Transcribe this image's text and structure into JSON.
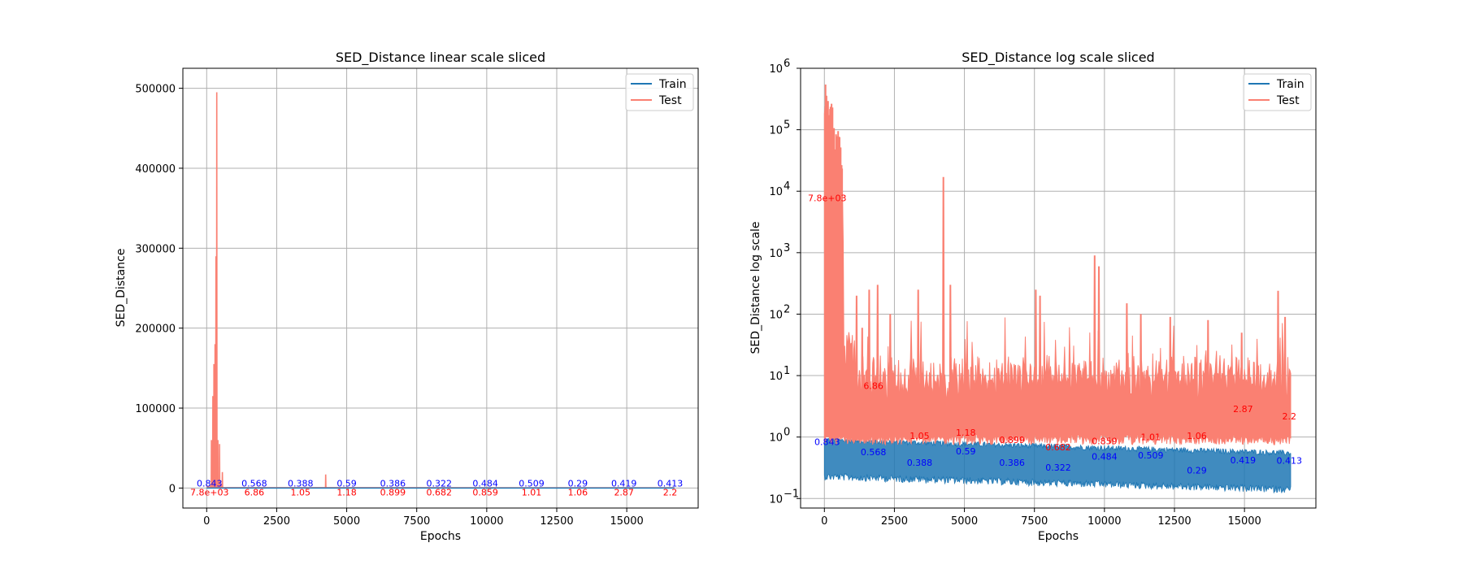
{
  "chart_data": [
    {
      "type": "line",
      "title": "SED_Distance linear scale sliced",
      "xlabel": "Epochs",
      "ylabel": "SED_Distance",
      "xlim": [
        -850,
        17550
      ],
      "ylim": [
        -25000,
        525000
      ],
      "xticks": [
        0,
        2500,
        5000,
        7500,
        10000,
        12500,
        15000
      ],
      "yticks": [
        0,
        100000,
        200000,
        300000,
        400000,
        500000
      ],
      "grid": true,
      "legend": "top-right",
      "series": [
        {
          "name": "Train",
          "color": "#1f77b4"
        },
        {
          "name": "Test",
          "color": "#fa8072"
        }
      ],
      "test_peaks": [
        [
          140,
          4000
        ],
        [
          170,
          60000
        ],
        [
          190,
          3000
        ],
        [
          220,
          115000
        ],
        [
          240,
          5000
        ],
        [
          260,
          155000
        ],
        [
          280,
          20000
        ],
        [
          300,
          180000
        ],
        [
          315,
          30000
        ],
        [
          330,
          290000
        ],
        [
          345,
          20000
        ],
        [
          360,
          495000
        ],
        [
          375,
          10000
        ],
        [
          400,
          60000
        ],
        [
          420,
          8000
        ],
        [
          460,
          55000
        ],
        [
          500,
          5000
        ],
        [
          560,
          20000
        ],
        [
          4250,
          17000
        ]
      ],
      "annotations_train": [
        {
          "x": 100,
          "text": "0.843"
        },
        {
          "x": 1700,
          "text": "0.568"
        },
        {
          "x": 3350,
          "text": "0.388"
        },
        {
          "x": 5000,
          "text": "0.59"
        },
        {
          "x": 6650,
          "text": "0.386"
        },
        {
          "x": 8300,
          "text": "0.322"
        },
        {
          "x": 9950,
          "text": "0.484"
        },
        {
          "x": 11600,
          "text": "0.509"
        },
        {
          "x": 13250,
          "text": "0.29"
        },
        {
          "x": 14900,
          "text": "0.419"
        },
        {
          "x": 16550,
          "text": "0.413"
        }
      ],
      "annotations_test": [
        {
          "x": 100,
          "text": "7.8e+03"
        },
        {
          "x": 1700,
          "text": "6.86"
        },
        {
          "x": 3350,
          "text": "1.05"
        },
        {
          "x": 5000,
          "text": "1.18"
        },
        {
          "x": 6650,
          "text": "0.899"
        },
        {
          "x": 8300,
          "text": "0.682"
        },
        {
          "x": 9950,
          "text": "0.859"
        },
        {
          "x": 11600,
          "text": "1.01"
        },
        {
          "x": 13250,
          "text": "1.06"
        },
        {
          "x": 14900,
          "text": "2.87"
        },
        {
          "x": 16550,
          "text": "2.2"
        }
      ],
      "annotation_colors": {
        "train": "#0000ff",
        "test": "#ff0000"
      }
    },
    {
      "type": "line",
      "title": "SED_Distance log scale sliced",
      "xlabel": "Epochs",
      "ylabel": "SED_Distance log scale",
      "log_y": true,
      "xlim": [
        -850,
        17550
      ],
      "ylim": [
        0.07,
        1000000
      ],
      "xticks": [
        0,
        2500,
        5000,
        7500,
        10000,
        12500,
        15000
      ],
      "yticks": [
        {
          "value": 0.1,
          "base": "10",
          "exp": "−1"
        },
        {
          "value": 1,
          "base": "10",
          "exp": "0"
        },
        {
          "value": 10,
          "base": "10",
          "exp": "1"
        },
        {
          "value": 100,
          "base": "10",
          "exp": "2"
        },
        {
          "value": 1000,
          "base": "10",
          "exp": "3"
        },
        {
          "value": 10000,
          "base": "10",
          "exp": "4"
        },
        {
          "value": 100000,
          "base": "10",
          "exp": "5"
        },
        {
          "value": 1000000,
          "base": "10",
          "exp": "6"
        }
      ],
      "grid": true,
      "legend": "top-right",
      "series": [
        {
          "name": "Train",
          "color": "#1f77b4"
        },
        {
          "name": "Test",
          "color": "#fa8072"
        }
      ],
      "test_spikes": [
        [
          1150,
          200
        ],
        [
          1350,
          60
        ],
        [
          1600,
          250
        ],
        [
          1900,
          300
        ],
        [
          2350,
          100
        ],
        [
          3350,
          250
        ],
        [
          4250,
          17000
        ],
        [
          4500,
          300
        ],
        [
          7550,
          250
        ],
        [
          7700,
          200
        ],
        [
          9650,
          900
        ],
        [
          9800,
          600
        ],
        [
          10800,
          150
        ],
        [
          11300,
          100
        ],
        [
          12350,
          90
        ],
        [
          13700,
          80
        ],
        [
          14900,
          50
        ],
        [
          16200,
          240
        ],
        [
          16450,
          90
        ]
      ],
      "annotations_train": [
        {
          "x": 100,
          "y": 0.843,
          "text": "0.843"
        },
        {
          "x": 1750,
          "y": 0.568,
          "text": "0.568"
        },
        {
          "x": 3400,
          "y": 0.388,
          "text": "0.388"
        },
        {
          "x": 5050,
          "y": 0.59,
          "text": "0.59"
        },
        {
          "x": 6700,
          "y": 0.386,
          "text": "0.386"
        },
        {
          "x": 8350,
          "y": 0.322,
          "text": "0.322"
        },
        {
          "x": 10000,
          "y": 0.484,
          "text": "0.484"
        },
        {
          "x": 11650,
          "y": 0.509,
          "text": "0.509"
        },
        {
          "x": 13300,
          "y": 0.29,
          "text": "0.29"
        },
        {
          "x": 14950,
          "y": 0.419,
          "text": "0.419"
        },
        {
          "x": 16600,
          "y": 0.413,
          "text": "0.413"
        }
      ],
      "annotations_test": [
        {
          "x": 100,
          "y": 7800,
          "text": "7.8e+03"
        },
        {
          "x": 1750,
          "y": 6.86,
          "text": "6.86"
        },
        {
          "x": 3400,
          "y": 1.05,
          "text": "1.05"
        },
        {
          "x": 5050,
          "y": 1.18,
          "text": "1.18"
        },
        {
          "x": 6700,
          "y": 0.899,
          "text": "0.899"
        },
        {
          "x": 8350,
          "y": 0.682,
          "text": "0.682"
        },
        {
          "x": 10000,
          "y": 0.859,
          "text": "0.859"
        },
        {
          "x": 11650,
          "y": 1.01,
          "text": "1.01"
        },
        {
          "x": 13300,
          "y": 1.06,
          "text": "1.06"
        },
        {
          "x": 14950,
          "y": 2.87,
          "text": "2.87"
        },
        {
          "x": 16600,
          "y": 2.2,
          "text": "2.2"
        }
      ],
      "annotation_colors": {
        "train": "#0000ff",
        "test": "#ff0000"
      }
    }
  ]
}
